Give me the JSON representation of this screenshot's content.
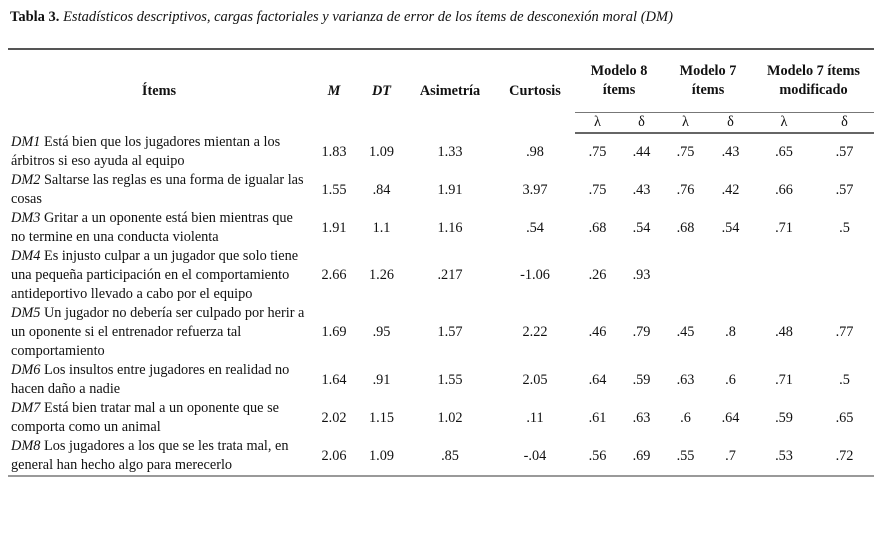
{
  "caption": {
    "label": "Tabla 3.",
    "text": "Estadísticos descriptivos, cargas factoriales y varianza de error de los ítems de desconexión moral (DM)"
  },
  "headers": {
    "items": "Ítems",
    "m": "M",
    "dt": "DT",
    "asimetria": "Asimetría",
    "curtosis": "Curtosis",
    "modelo8": "Modelo 8 ítems",
    "modelo7": "Modelo 7 ítems",
    "modelo7mod": "Modelo 7 ítems modificado",
    "lambda": "λ",
    "delta": "δ"
  },
  "rows": [
    {
      "code": "DM1",
      "text": "Está bien que los jugadores mientan a los árbitros si eso ayuda al equipo",
      "m": "1.83",
      "dt": "1.09",
      "asim": "1.33",
      "curt": ".98",
      "l8": ".75",
      "d8": ".44",
      "l7": ".75",
      "d7": ".43",
      "l7m": ".65",
      "d7m": ".57"
    },
    {
      "code": "DM2",
      "text": "Saltarse las reglas es una forma de igualar las cosas",
      "m": "1.55",
      "dt": ".84",
      "asim": "1.91",
      "curt": "3.97",
      "l8": ".75",
      "d8": ".43",
      "l7": ".76",
      "d7": ".42",
      "l7m": ".66",
      "d7m": ".57"
    },
    {
      "code": "DM3",
      "text": "Gritar a un oponente está bien mientras que no termine en una conducta violenta",
      "m": "1.91",
      "dt": "1.1",
      "asim": "1.16",
      "curt": ".54",
      "l8": ".68",
      "d8": ".54",
      "l7": ".68",
      "d7": ".54",
      "l7m": ".71",
      "d7m": ".5"
    },
    {
      "code": "DM4",
      "text": "Es injusto culpar a un jugador que solo tiene una pequeña participación en el comportamiento antideportivo llevado a cabo por el equipo",
      "m": "2.66",
      "dt": "1.26",
      "asim": ".217",
      "curt": "-1.06",
      "l8": ".26",
      "d8": ".93",
      "l7": "",
      "d7": "",
      "l7m": "",
      "d7m": ""
    },
    {
      "code": "DM5",
      "text": "Un jugador no debería ser culpado por herir a un oponente si el entrenador refuerza tal comportamiento",
      "m": "1.69",
      "dt": ".95",
      "asim": "1.57",
      "curt": "2.22",
      "l8": ".46",
      "d8": ".79",
      "l7": ".45",
      "d7": ".8",
      "l7m": ".48",
      "d7m": ".77"
    },
    {
      "code": "DM6",
      "text": "Los insultos entre jugadores en realidad no hacen daño a nadie",
      "m": "1.64",
      "dt": ".91",
      "asim": "1.55",
      "curt": "2.05",
      "l8": ".64",
      "d8": ".59",
      "l7": ".63",
      "d7": ".6",
      "l7m": ".71",
      "d7m": ".5"
    },
    {
      "code": "DM7",
      "text": "Está bien tratar mal a un oponente que se comporta como un animal",
      "m": "2.02",
      "dt": "1.15",
      "asim": "1.02",
      "curt": ".11",
      "l8": ".61",
      "d8": ".63",
      "l7": ".6",
      "d7": ".64",
      "l7m": ".59",
      "d7m": ".65"
    },
    {
      "code": "DM8",
      "text": "Los jugadores a los que se les trata mal, en general han hecho algo para merecerlo",
      "m": "2.06",
      "dt": "1.09",
      "asim": ".85",
      "curt": "-.04",
      "l8": ".56",
      "d8": ".69",
      "l7": ".55",
      "d7": ".7",
      "l7m": ".53",
      "d7m": ".72"
    }
  ]
}
